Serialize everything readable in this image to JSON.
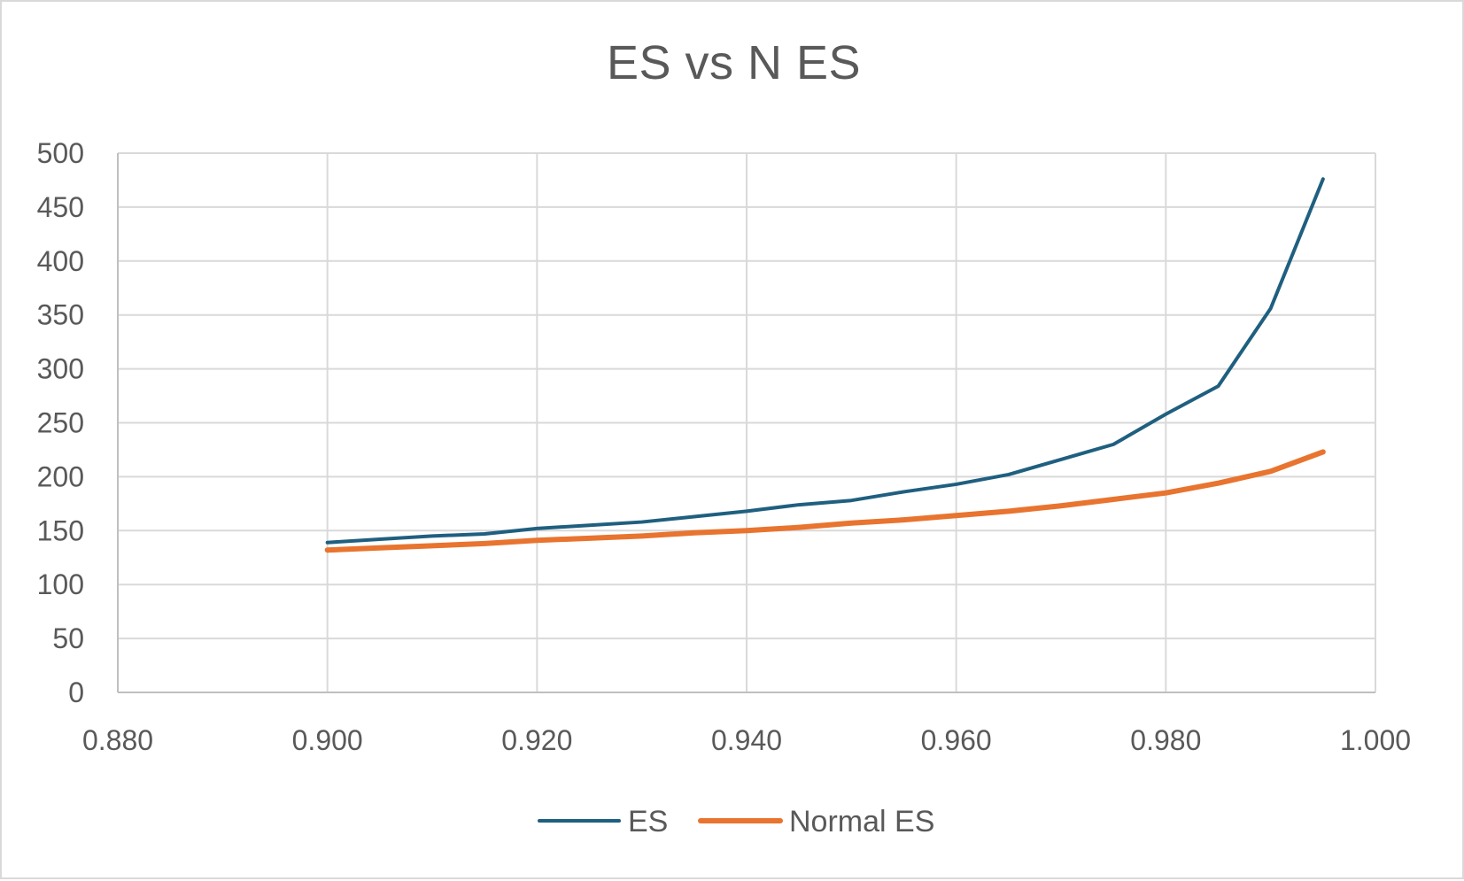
{
  "chart_data": {
    "type": "line",
    "title": "ES vs N ES",
    "xlabel": "",
    "ylabel": "",
    "xlim": [
      0.88,
      1.0
    ],
    "ylim": [
      0,
      500
    ],
    "x_ticks": [
      "0.880",
      "0.900",
      "0.920",
      "0.940",
      "0.960",
      "0.980",
      "1.000"
    ],
    "y_ticks": [
      "0",
      "50",
      "100",
      "150",
      "200",
      "250",
      "300",
      "350",
      "400",
      "450",
      "500"
    ],
    "x_tick_values": [
      0.88,
      0.9,
      0.92,
      0.94,
      0.96,
      0.98,
      1.0
    ],
    "y_tick_values": [
      0,
      50,
      100,
      150,
      200,
      250,
      300,
      350,
      400,
      450,
      500
    ],
    "grid": true,
    "legend_position": "bottom",
    "x": [
      0.9,
      0.905,
      0.91,
      0.915,
      0.92,
      0.925,
      0.93,
      0.935,
      0.94,
      0.945,
      0.95,
      0.955,
      0.96,
      0.965,
      0.97,
      0.975,
      0.98,
      0.985,
      0.99,
      0.995
    ],
    "series": [
      {
        "name": "ES",
        "color": "#1f5f7f",
        "values": [
          139,
          142,
          145,
          147,
          152,
          155,
          158,
          163,
          168,
          174,
          178,
          186,
          193,
          202,
          216,
          230,
          258,
          284,
          356,
          476
        ]
      },
      {
        "name": "Normal ES",
        "color": "#e8742f",
        "values": [
          132,
          134,
          136,
          138,
          141,
          143,
          145,
          148,
          150,
          153,
          157,
          160,
          164,
          168,
          173,
          179,
          185,
          194,
          205,
          223
        ]
      }
    ]
  }
}
